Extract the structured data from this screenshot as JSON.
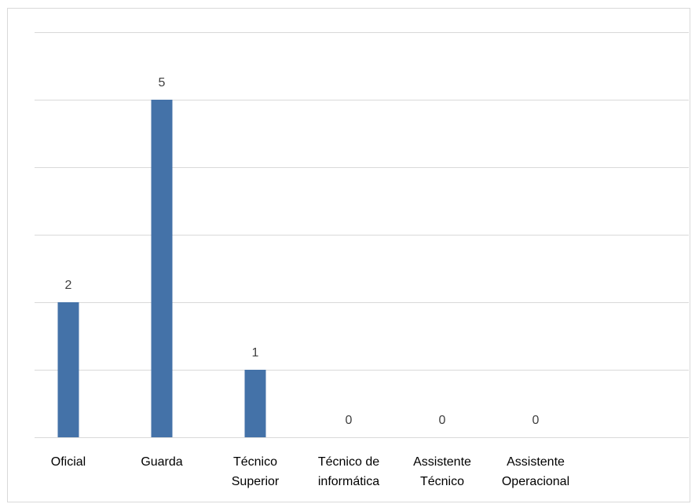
{
  "chart_data": {
    "type": "bar",
    "categories": [
      [
        "Oficial"
      ],
      [
        "Guarda"
      ],
      [
        "Técnico",
        "Superior"
      ],
      [
        "Técnico de",
        "informática"
      ],
      [
        "Assistente",
        "Técnico"
      ],
      [
        "Assistente",
        "Operacional"
      ]
    ],
    "values": [
      2,
      5,
      1,
      0,
      0,
      0
    ],
    "title": "",
    "xlabel": "",
    "ylabel": "",
    "ylim": [
      0,
      6
    ],
    "gridlines": true,
    "legend": "none",
    "colors": {
      "bar": "#4472a8",
      "grid": "#d9d9d9"
    }
  }
}
